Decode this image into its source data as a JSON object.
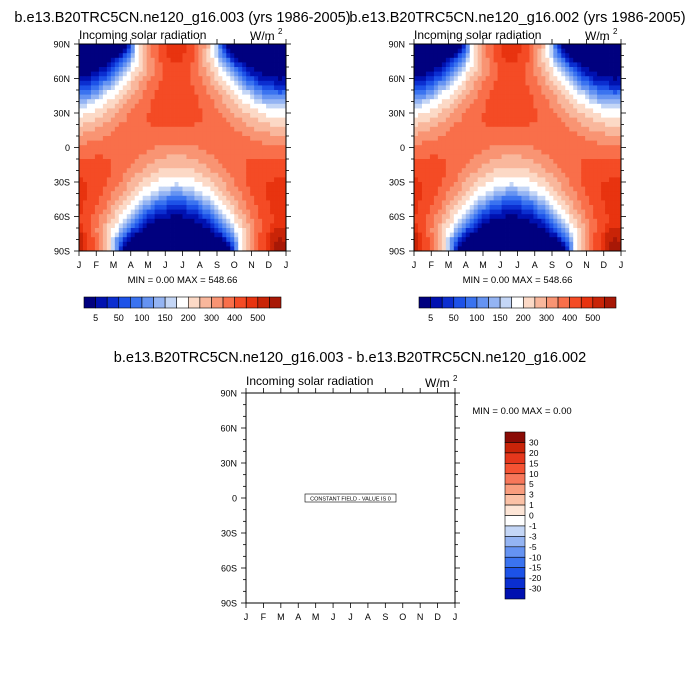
{
  "colors": {
    "seq_palette": [
      "#00007f",
      "#0011b0",
      "#0b2ed0",
      "#1d52e8",
      "#3a73f0",
      "#6593f2",
      "#94b4f3",
      "#c4d6f6",
      "#ffffff",
      "#fcd9c6",
      "#f9b79c",
      "#f99473",
      "#f96f4a",
      "#f44b25",
      "#e8330f",
      "#c92407",
      "#a81806",
      "#8a0b05"
    ],
    "diff_palette": [
      "#00007f",
      "#0010b0",
      "#0a2ed0",
      "#1c52e8",
      "#3a73f0",
      "#6593f2",
      "#94b4f3",
      "#c4d6f6",
      "#ffffff",
      "#fde5d6",
      "#fbc1a6",
      "#f99d7e",
      "#f7775a",
      "#f55333",
      "#e5371c",
      "#c92409",
      "#8a0b05"
    ]
  },
  "chart_data": [
    {
      "type": "heatmap",
      "title": "b.e13.B20TRC5CN.ne120_g16.003 (yrs 1986-2005)",
      "subtitle": "Incoming solar radiation",
      "units_label": "W/m",
      "units_sup": "2",
      "stats": "MIN =   0.00 MAX = 548.66",
      "x_tick_labels": [
        "J",
        "F",
        "M",
        "A",
        "M",
        "J",
        "J",
        "A",
        "S",
        "O",
        "N",
        "D",
        "J"
      ],
      "y_tick_labels": [
        "90N",
        "60N",
        "30N",
        "0",
        "30S",
        "60S",
        "90S"
      ],
      "y_range": [
        -90,
        90
      ],
      "value_range": [
        0,
        548.66
      ],
      "colorbar": {
        "levels": [
          0,
          25,
          50,
          75,
          100,
          125,
          150,
          175,
          200,
          250,
          300,
          350,
          400,
          450,
          500,
          525,
          550
        ],
        "labels": [
          "5",
          "50",
          "100",
          "150",
          "200",
          "300",
          "400",
          "500"
        ]
      }
    },
    {
      "type": "heatmap",
      "title": "b.e13.B20TRC5CN.ne120_g16.002 (yrs 1986-2005)",
      "subtitle": "Incoming solar radiation",
      "units_label": "W/m",
      "units_sup": "2",
      "stats": "MIN =   0.00 MAX = 548.66",
      "x_tick_labels": [
        "J",
        "F",
        "M",
        "A",
        "M",
        "J",
        "J",
        "A",
        "S",
        "O",
        "N",
        "D",
        "J"
      ],
      "y_tick_labels": [
        "90N",
        "60N",
        "30N",
        "0",
        "30S",
        "60S",
        "90S"
      ],
      "y_range": [
        -90,
        90
      ],
      "value_range": [
        0,
        548.66
      ],
      "colorbar": {
        "levels": [
          0,
          25,
          50,
          75,
          100,
          125,
          150,
          175,
          200,
          250,
          300,
          350,
          400,
          450,
          500,
          525,
          550
        ],
        "labels": [
          "5",
          "50",
          "100",
          "150",
          "200",
          "300",
          "400",
          "500"
        ]
      }
    },
    {
      "type": "heatmap",
      "title": "b.e13.B20TRC5CN.ne120_g16.003 - b.e13.B20TRC5CN.ne120_g16.002",
      "subtitle": "Incoming solar radiation",
      "units_label": "W/m",
      "units_sup": "2",
      "stats": "MIN =   0.00 MAX =   0.00",
      "annotation": "CONSTANT FIELD - VALUE IS 0",
      "x_tick_labels": [
        "J",
        "F",
        "M",
        "A",
        "M",
        "J",
        "J",
        "A",
        "S",
        "O",
        "N",
        "D",
        "J"
      ],
      "y_tick_labels": [
        "90N",
        "60N",
        "30N",
        "0",
        "30S",
        "60S",
        "90S"
      ],
      "y_range": [
        -90,
        90
      ],
      "value_range": [
        0,
        0
      ],
      "colorbar": {
        "labels": [
          "30",
          "20",
          "15",
          "10",
          "5",
          "3",
          "1",
          "0",
          "-1",
          "-3",
          "-5",
          "-10",
          "-15",
          "-20",
          "-30"
        ]
      }
    }
  ]
}
